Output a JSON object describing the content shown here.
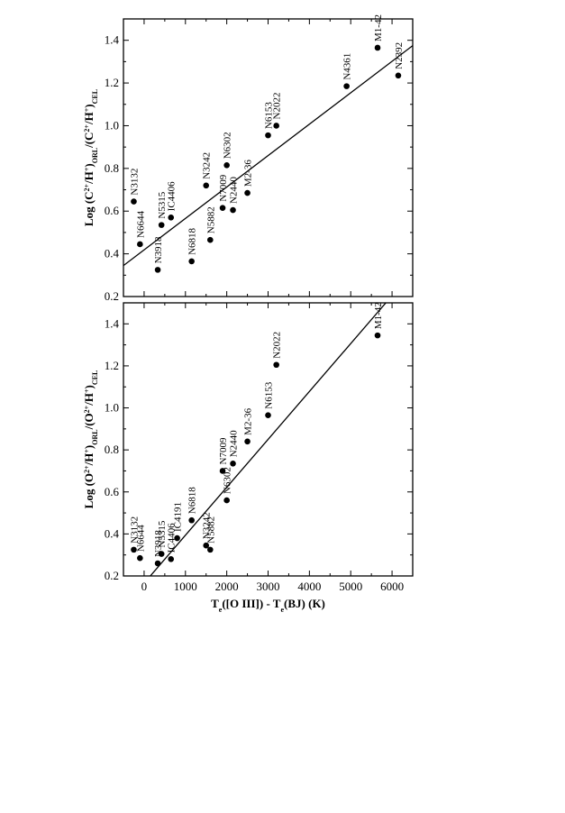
{
  "chart_data": [
    {
      "type": "scatter",
      "panel": "top",
      "ylabel_parts": [
        {
          "t": "Log (C"
        },
        {
          "t": "2+",
          "sup": true
        },
        {
          "t": "/H"
        },
        {
          "t": "+",
          "sup": true
        },
        {
          "t": ")"
        },
        {
          "t": "ORL",
          "sub": true
        },
        {
          "t": "/(C"
        },
        {
          "t": "2+",
          "sup": true
        },
        {
          "t": "/H"
        },
        {
          "t": "+",
          "sup": true
        },
        {
          "t": ")"
        },
        {
          "t": "CEL",
          "sub": true
        }
      ],
      "xlim": [
        -500,
        6500
      ],
      "ylim": [
        0.2,
        1.5
      ],
      "yticks": [
        "0.2",
        "0.4",
        "0.6",
        "0.8",
        "1.0",
        "1.2",
        "1.4"
      ],
      "fit_line": [
        [
          -500,
          0.345
        ],
        [
          6500,
          1.375
        ]
      ],
      "points": [
        {
          "label": "N3132",
          "x": -250,
          "y": 0.645
        },
        {
          "label": "N6644",
          "x": -100,
          "y": 0.445
        },
        {
          "label": "N3918",
          "x": 330,
          "y": 0.325
        },
        {
          "label": "N5315",
          "x": 420,
          "y": 0.535
        },
        {
          "label": "IC4406",
          "x": 650,
          "y": 0.57
        },
        {
          "label": "N6818",
          "x": 1150,
          "y": 0.365
        },
        {
          "label": "N3242",
          "x": 1500,
          "y": 0.72
        },
        {
          "label": "N5882",
          "x": 1600,
          "y": 0.465
        },
        {
          "label": "N7009",
          "x": 1900,
          "y": 0.615
        },
        {
          "label": "N6302",
          "x": 2000,
          "y": 0.815
        },
        {
          "label": "N2440",
          "x": 2150,
          "y": 0.605
        },
        {
          "label": "M2-36",
          "x": 2500,
          "y": 0.685
        },
        {
          "label": "N6153",
          "x": 3000,
          "y": 0.955
        },
        {
          "label": "N2022",
          "x": 3200,
          "y": 1.0
        },
        {
          "label": "N4361",
          "x": 4900,
          "y": 1.185
        },
        {
          "label": "M1-42",
          "x": 5650,
          "y": 1.365
        },
        {
          "label": "N2392",
          "x": 6150,
          "y": 1.235
        }
      ]
    },
    {
      "type": "scatter",
      "panel": "bottom",
      "xlabel_parts": [
        {
          "t": "T"
        },
        {
          "t": "e",
          "sub": true
        },
        {
          "t": "([O III]) - T"
        },
        {
          "t": "e",
          "sub": true
        },
        {
          "t": "(BJ)  (K)"
        }
      ],
      "ylabel_parts": [
        {
          "t": "Log (O"
        },
        {
          "t": "2+",
          "sup": true
        },
        {
          "t": "/H"
        },
        {
          "t": "+",
          "sup": true
        },
        {
          "t": ")"
        },
        {
          "t": "ORL",
          "sub": true
        },
        {
          "t": "/(O"
        },
        {
          "t": "2+",
          "sup": true
        },
        {
          "t": "/H"
        },
        {
          "t": "+",
          "sup": true
        },
        {
          "t": ")"
        },
        {
          "t": "CEL",
          "sub": true
        }
      ],
      "xlim": [
        -500,
        6500
      ],
      "ylim": [
        0.2,
        1.5
      ],
      "xticks": [
        "0",
        "1000",
        "2000",
        "3000",
        "4000",
        "5000",
        "6000"
      ],
      "yticks": [
        "0.2",
        "0.4",
        "0.6",
        "0.8",
        "1.0",
        "1.2",
        "1.4"
      ],
      "fit_line": [
        [
          150,
          0.2
        ],
        [
          5850,
          1.5
        ]
      ],
      "points": [
        {
          "label": "N3132",
          "x": -250,
          "y": 0.325
        },
        {
          "label": "N6644",
          "x": -100,
          "y": 0.285
        },
        {
          "label": "N3918",
          "x": 330,
          "y": 0.26
        },
        {
          "label": "N5315",
          "x": 420,
          "y": 0.305
        },
        {
          "label": "IC4406",
          "x": 650,
          "y": 0.28
        },
        {
          "label": "IC4191",
          "x": 800,
          "y": 0.38
        },
        {
          "label": "N6818",
          "x": 1150,
          "y": 0.465
        },
        {
          "label": "N3242",
          "x": 1500,
          "y": 0.345
        },
        {
          "label": "N5882",
          "x": 1600,
          "y": 0.325
        },
        {
          "label": "N7009",
          "x": 1900,
          "y": 0.7
        },
        {
          "label": "N6302",
          "x": 2000,
          "y": 0.56
        },
        {
          "label": "N2440",
          "x": 2150,
          "y": 0.735
        },
        {
          "label": "M2-36",
          "x": 2500,
          "y": 0.84
        },
        {
          "label": "N6153",
          "x": 3000,
          "y": 0.965
        },
        {
          "label": "N2022",
          "x": 3200,
          "y": 1.205
        },
        {
          "label": "M1-42",
          "x": 5650,
          "y": 1.345
        }
      ]
    }
  ]
}
